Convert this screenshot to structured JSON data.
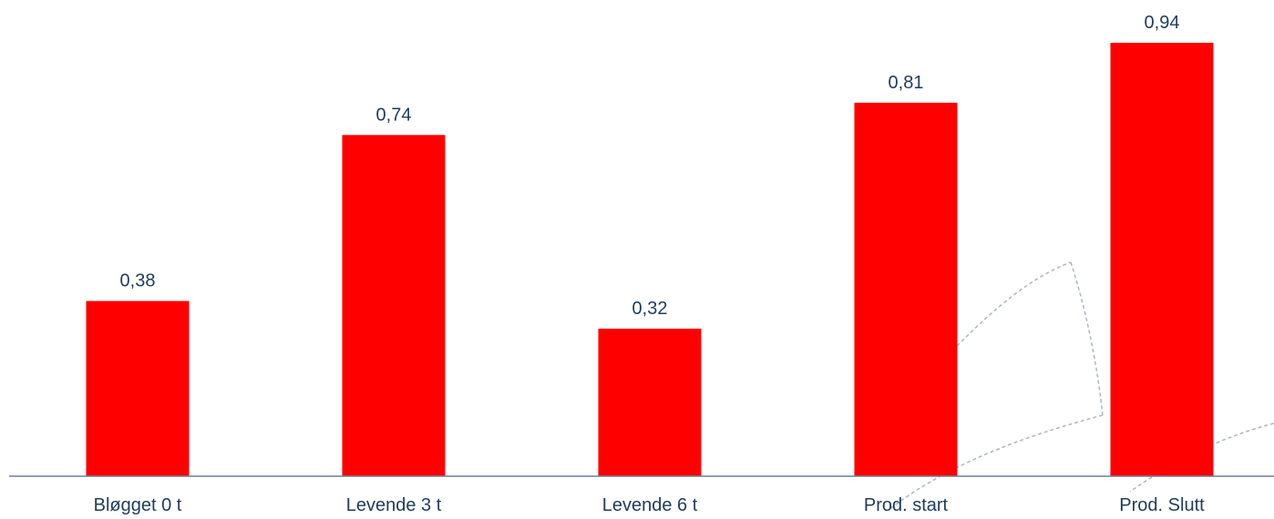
{
  "chart_data": {
    "type": "bar",
    "categories": [
      "Bløgget 0 t",
      "Levende 3 t",
      "Levende 6 t",
      "Prod. start",
      "Prod. Slutt"
    ],
    "values": [
      0.38,
      0.74,
      0.32,
      0.81,
      0.94
    ],
    "value_labels": [
      "0,38",
      "0,74",
      "0,32",
      "0,81",
      "0,94"
    ],
    "title": "",
    "xlabel": "",
    "ylabel": "",
    "ylim": [
      0,
      0.94
    ],
    "grid": false,
    "legend": "none",
    "bar_color": "#ff0000",
    "text_color": "#1f3c5a",
    "axis_color": "#6b7f9c"
  }
}
